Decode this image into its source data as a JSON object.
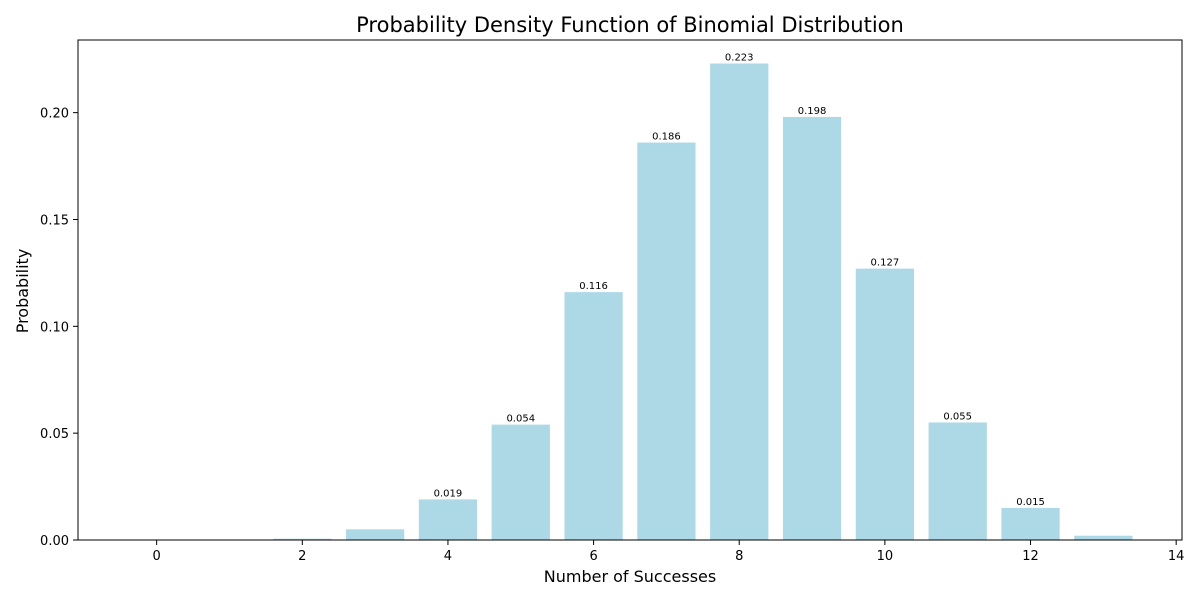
{
  "chart_data": {
    "type": "bar",
    "title": "Probability Density Function of Binomial Distribution",
    "xlabel": "Number of Successes",
    "ylabel": "Probability",
    "x": [
      0,
      1,
      2,
      3,
      4,
      5,
      6,
      7,
      8,
      9,
      10,
      11,
      12,
      13
    ],
    "values": [
      0.0,
      0.0,
      0.0006,
      0.005,
      0.019,
      0.054,
      0.116,
      0.186,
      0.223,
      0.198,
      0.127,
      0.055,
      0.015,
      0.002
    ],
    "data_labels": [
      "",
      "",
      "",
      "",
      "0.019",
      "0.054",
      "0.116",
      "0.186",
      "0.223",
      "0.198",
      "0.127",
      "0.055",
      "0.015",
      ""
    ],
    "xlim": [
      -1.08,
      14.08
    ],
    "ylim": [
      0,
      0.234
    ],
    "xticks": [
      "0",
      "2",
      "4",
      "6",
      "8",
      "10",
      "12",
      "14"
    ],
    "yticks": [
      "0.00",
      "0.05",
      "0.10",
      "0.15",
      "0.20"
    ],
    "bar_color": "#add8e6",
    "grid": false
  }
}
